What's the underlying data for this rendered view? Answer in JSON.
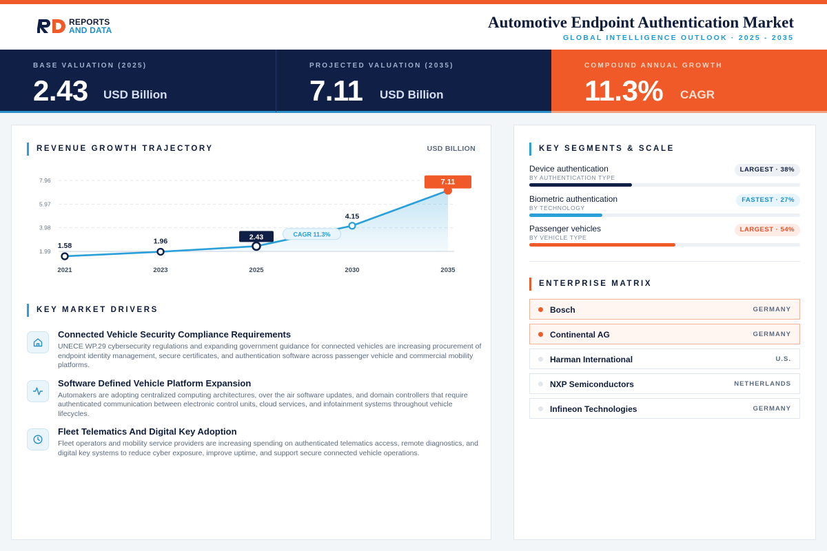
{
  "header": {
    "logo_line1": "REPORTS",
    "logo_line2": "AND DATA",
    "title": "Automotive Endpoint Authentication Market",
    "subtitle": "GLOBAL INTELLIGENCE OUTLOOK  ·  2025 - 2035"
  },
  "kpis": [
    {
      "label": "BASE VALUATION (2025)",
      "value": "2.43",
      "unit": "USD Billion"
    },
    {
      "label": "PROJECTED VALUATION (2035)",
      "value": "7.11",
      "unit": "USD Billion"
    },
    {
      "label": "COMPOUND ANNUAL GROWTH",
      "value": "11.3%",
      "unit": "CAGR"
    }
  ],
  "trajectory": {
    "title": "REVENUE GROWTH TRAJECTORY",
    "unit": "USD BILLION"
  },
  "chart_data": {
    "type": "area",
    "title": "REVENUE GROWTH TRAJECTORY",
    "ylabel": "USD BILLION",
    "x": [
      "2021",
      "2023",
      "2025",
      "2030",
      "2035"
    ],
    "values": [
      1.58,
      1.96,
      2.43,
      4.15,
      7.11
    ],
    "labels": [
      "1.58",
      "1.96",
      "2.43",
      "4.15",
      "7.11"
    ],
    "yticks": [
      "7.96",
      "5.97",
      "3.98",
      "1.99"
    ],
    "ylim": [
      1.99,
      7.96
    ],
    "annotation": "CAGR 11.3%",
    "grid": true,
    "colors": {
      "line": "#2b9fd8",
      "base": "#0f1f45",
      "end": "#f05a28"
    }
  },
  "drivers": {
    "title": "KEY MARKET DRIVERS",
    "items": [
      {
        "icon": "home-icon",
        "title": "Connected Vehicle Security Compliance Requirements",
        "desc": "UNECE WP.29 cybersecurity regulations and expanding government guidance for connected vehicles are increasing procurement of endpoint identity management, secure certificates, and authentication software across passenger vehicle and commercial mobility platforms."
      },
      {
        "icon": "activity-icon",
        "title": "Software Defined Vehicle Platform Expansion",
        "desc": "Automakers are adopting centralized computing architectures, over the air software updates, and domain controllers that require authenticated communication between electronic control units, cloud services, and infotainment systems throughout vehicle lifecycles."
      },
      {
        "icon": "clock-icon",
        "title": "Fleet Telematics And Digital Key Adoption",
        "desc": "Fleet operators and mobility service providers are increasing spending on authenticated telematics access, remote diagnostics, and digital key systems to reduce cyber exposure, improve uptime, and support secure connected vehicle operations."
      }
    ]
  },
  "segments": {
    "title": "KEY SEGMENTS & SCALE",
    "items": [
      {
        "name": "Device authentication",
        "sub": "BY AUTHENTICATION TYPE",
        "badge": "LARGEST · 38%",
        "share": 0.38,
        "color": "#0f1f45",
        "badge_bg": "#edf0f4",
        "badge_fg": "#0f1d3a"
      },
      {
        "name": "Biometric authentication",
        "sub": "BY TECHNOLOGY",
        "badge": "FASTEST · 27%",
        "share": 0.27,
        "color": "#2b9fd8",
        "badge_bg": "#e6f4fb",
        "badge_fg": "#1d8fc7"
      },
      {
        "name": "Passenger vehicles",
        "sub": "BY VEHICLE TYPE",
        "badge": "LARGEST · 54%",
        "share": 0.54,
        "color": "#f05a28",
        "badge_bg": "#fdece5",
        "badge_fg": "#e0522a"
      }
    ]
  },
  "matrix": {
    "title": "ENTERPRISE MATRIX",
    "items": [
      {
        "name": "Bosch",
        "country": "GERMANY",
        "highlight": true
      },
      {
        "name": "Continental AG",
        "country": "GERMANY",
        "highlight": true
      },
      {
        "name": "Harman International",
        "country": "U.S.",
        "highlight": false
      },
      {
        "name": "NXP Semiconductors",
        "country": "NETHERLANDS",
        "highlight": false
      },
      {
        "name": "Infineon Technologies",
        "country": "GERMANY",
        "highlight": false
      }
    ]
  }
}
